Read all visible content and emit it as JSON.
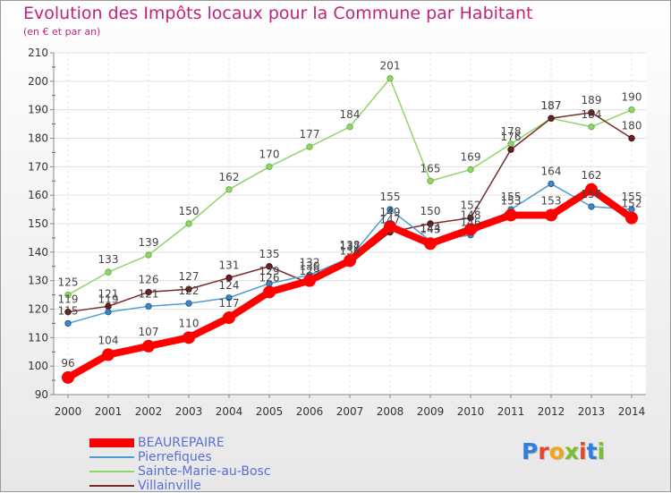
{
  "title": "Evolution des Impôts locaux pour la Commune par Habitant",
  "subtitle": "(en € et par an)",
  "logo_text": "Proxiti",
  "logo_colors": [
    "#2f7fe0",
    "#e8452c",
    "#f2a61b",
    "#7cbf2e",
    "#e8452c",
    "#2f7fe0",
    "#7cbf2e"
  ],
  "chart_data": {
    "type": "line",
    "title": "Evolution des Impôts locaux pour la Commune par Habitant",
    "subtitle": "(en € et par an)",
    "xlabel": "",
    "ylabel": "",
    "categories": [
      "2000",
      "2001",
      "2002",
      "2003",
      "2004",
      "2005",
      "2006",
      "2007",
      "2008",
      "2009",
      "2010",
      "2011",
      "2012",
      "2013",
      "2014"
    ],
    "ylim": [
      90,
      210
    ],
    "yticks": [
      90,
      100,
      110,
      120,
      130,
      140,
      150,
      160,
      170,
      180,
      190,
      200,
      210
    ],
    "grid": true,
    "legend_position": "bottom-left",
    "series": [
      {
        "name": "BEAUREPAIRE",
        "color": "#ff0000",
        "values": [
          96,
          104,
          107,
          110,
          117,
          126,
          130,
          137,
          149,
          143,
          148,
          153,
          153,
          162,
          152
        ],
        "labels": [
          "96",
          "104",
          "107",
          "110",
          "117",
          "126",
          "130",
          "137",
          "149",
          "143",
          "148",
          "153",
          "153",
          "162",
          "152"
        ]
      },
      {
        "name": "Pierrefiques",
        "color": "#4f9bd6",
        "values": [
          115,
          119,
          121,
          122,
          124,
          129,
          132,
          138,
          155,
          144,
          146,
          155,
          164,
          156,
          155
        ],
        "labels": [
          "115",
          "119",
          "121",
          "122",
          "124",
          "129",
          "132",
          "138",
          "155",
          "144",
          "146",
          "155",
          "164",
          "156",
          "155"
        ]
      },
      {
        "name": "Sainte-Marie-au-Bosc",
        "color": "#8fd66a",
        "values": [
          125,
          133,
          139,
          150,
          162,
          170,
          177,
          184,
          201,
          165,
          169,
          178,
          187,
          184,
          190
        ],
        "labels": [
          "125",
          "133",
          "139",
          "150",
          "162",
          "170",
          "177",
          "184",
          "201",
          "165",
          "169",
          "178",
          "187",
          "184",
          "190"
        ]
      },
      {
        "name": "Villainville",
        "color": "#7a2a2a",
        "values": [
          119,
          121,
          126,
          127,
          131,
          135,
          129,
          136,
          147,
          150,
          152,
          176,
          187,
          189,
          180
        ],
        "labels": [
          "119",
          "121",
          "126",
          "127",
          "131",
          "135",
          "129",
          "136",
          "147",
          "150",
          "152",
          "176",
          "187",
          "189",
          "180"
        ]
      }
    ]
  }
}
